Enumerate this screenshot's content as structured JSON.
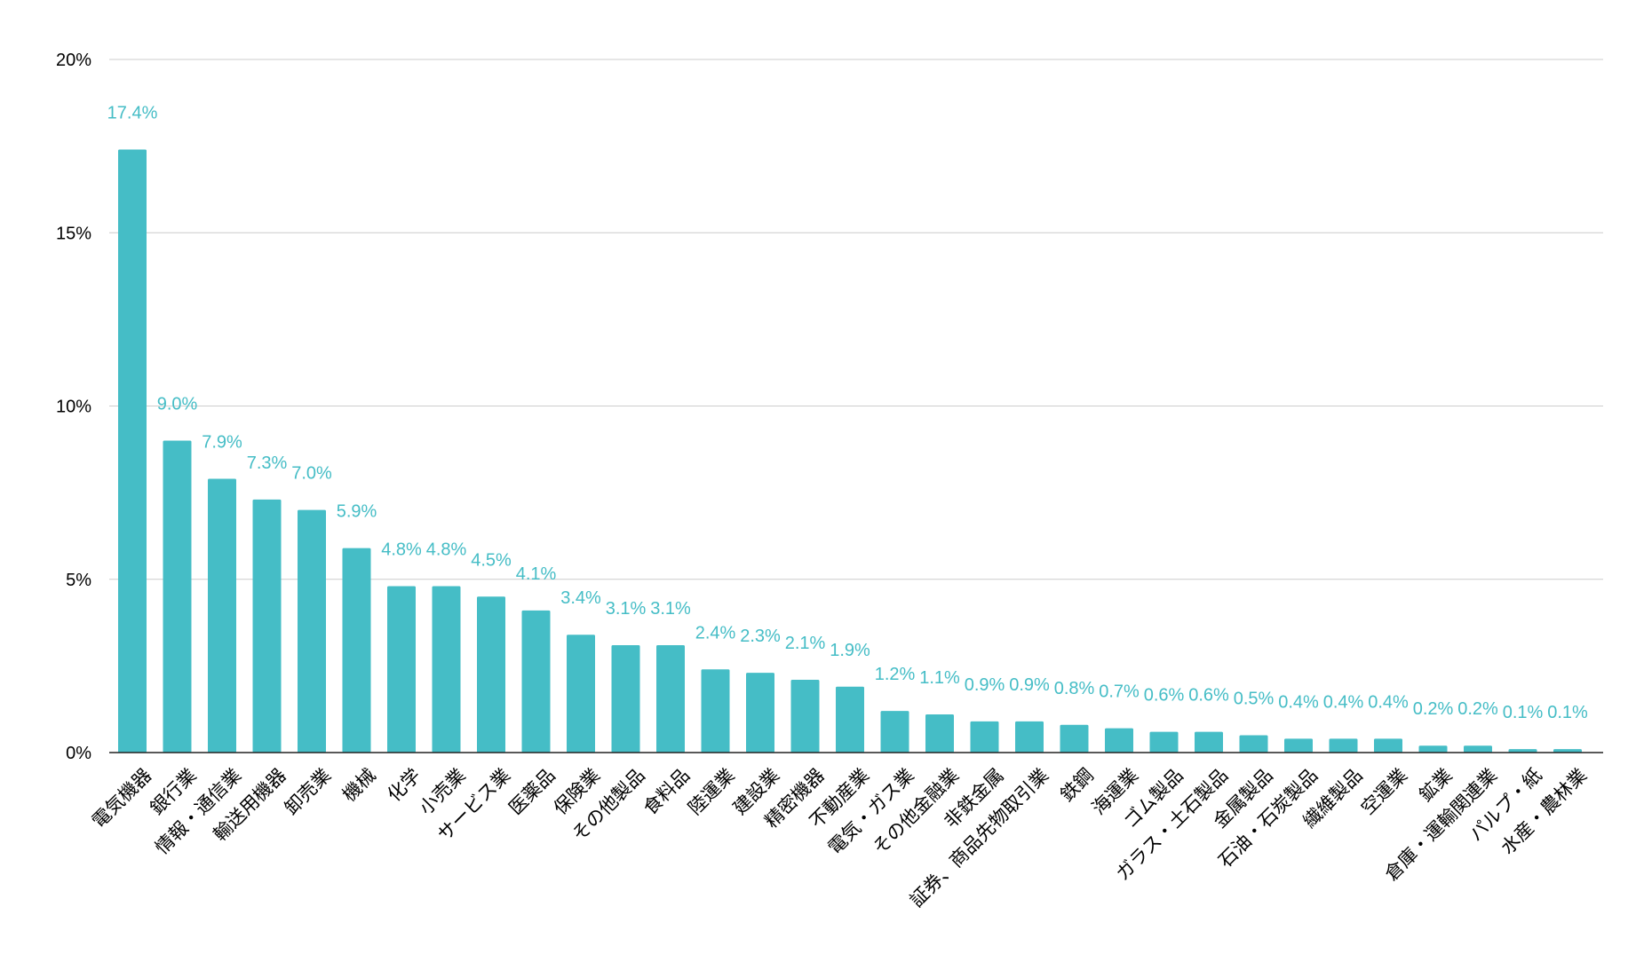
{
  "chart_data": {
    "type": "bar",
    "title": "",
    "xlabel": "",
    "ylabel": "",
    "ylim": [
      0,
      20
    ],
    "yticks": [
      "0%",
      "5%",
      "10%",
      "15%",
      "20%"
    ],
    "ytick_values": [
      0,
      5,
      10,
      15,
      20
    ],
    "grid": true,
    "legend": "none",
    "bar_color": "#45bdc6",
    "label_color": "#45bdc6",
    "categories": [
      "電気機器",
      "銀行業",
      "情報・通信業",
      "輸送用機器",
      "卸売業",
      "機械",
      "化学",
      "小売業",
      "サービス業",
      "医薬品",
      "保険業",
      "その他製品",
      "食料品",
      "陸運業",
      "建設業",
      "精密機器",
      "不動産業",
      "電気・ガス業",
      "その他金融業",
      "非鉄金属",
      "証券、商品先物取引業",
      "鉄鋼",
      "海運業",
      "ゴム製品",
      "ガラス・土石製品",
      "金属製品",
      "石油・石炭製品",
      "繊維製品",
      "空運業",
      "鉱業",
      "倉庫・運輸関連業",
      "パルプ・紙",
      "水産・農林業"
    ],
    "values": [
      17.4,
      9.0,
      7.9,
      7.3,
      7.0,
      5.9,
      4.8,
      4.8,
      4.5,
      4.1,
      3.4,
      3.1,
      3.1,
      2.4,
      2.3,
      2.1,
      1.9,
      1.2,
      1.1,
      0.9,
      0.9,
      0.8,
      0.7,
      0.6,
      0.6,
      0.5,
      0.4,
      0.4,
      0.4,
      0.2,
      0.2,
      0.1,
      0.1
    ],
    "data_labels": [
      "17.4%",
      "9.0%",
      "7.9%",
      "7.3%",
      "7.0%",
      "5.9%",
      "4.8%",
      "4.8%",
      "4.5%",
      "4.1%",
      "3.4%",
      "3.1%",
      "3.1%",
      "2.4%",
      "2.3%",
      "2.1%",
      "1.9%",
      "1.2%",
      "1.1%",
      "0.9%",
      "0.9%",
      "0.8%",
      "0.7%",
      "0.6%",
      "0.6%",
      "0.5%",
      "0.4%",
      "0.4%",
      "0.4%",
      "0.2%",
      "0.2%",
      "0.1%",
      "0.1%"
    ]
  }
}
